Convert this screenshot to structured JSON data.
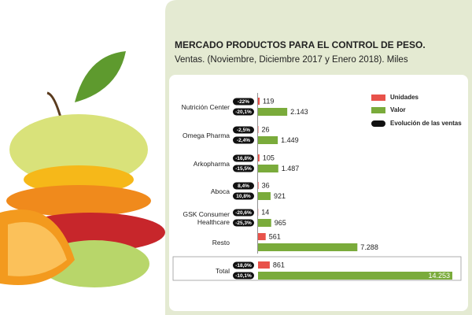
{
  "chart_data": {
    "type": "bar",
    "orientation": "horizontal",
    "title": "MERCADO PRODUCTOS PARA EL CONTROL DE PESO.",
    "subtitle": "Ventas. (Noviembre, Diciembre 2017 y Enero 2018). Miles",
    "categories": [
      "Nutrición Center",
      "Omega Pharma",
      "Arkopharma",
      "Aboca",
      "GSK Consumer Healthcare",
      "Resto",
      "Total"
    ],
    "series": [
      {
        "name": "Unidades",
        "color": "#e8524a",
        "values": [
          119,
          26,
          105,
          36,
          14,
          561,
          861
        ],
        "change_labels": [
          "-22%",
          "-2,5%",
          "-16,8%",
          "8,4%",
          "-20,6%",
          null,
          "-18,0%"
        ]
      },
      {
        "name": "Valor",
        "color": "#7aab3b",
        "values": [
          2143,
          1449,
          1487,
          921,
          965,
          7288,
          14253
        ],
        "value_labels": [
          "2.143",
          "1.449",
          "1.487",
          "921",
          "965",
          "7.288",
          "14.253"
        ],
        "change_labels": [
          "-20,1%",
          "-2,4%",
          "-15,5%",
          "10,8%",
          "-25,3%",
          null,
          "-10,1%"
        ]
      }
    ],
    "change_legend": "Evolución de las ventas"
  }
}
